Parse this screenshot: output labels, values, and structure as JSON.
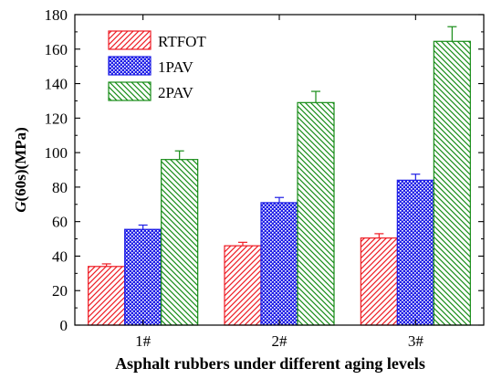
{
  "chart_data": {
    "type": "bar",
    "xlabel": "Asphalt rubbers under different aging levels",
    "ylabel_italic": "G",
    "ylabel_rest": "(60s)(MPa)",
    "ylim": [
      0,
      180
    ],
    "yticks": [
      "0",
      "20",
      "40",
      "60",
      "80",
      "100",
      "120",
      "140",
      "160",
      "180"
    ],
    "categories": [
      "1#",
      "2#",
      "3#"
    ],
    "legend_position": "top-left",
    "grid": false,
    "series": [
      {
        "name": "RTFOT",
        "values": [
          34,
          46,
          50.5
        ],
        "errors": [
          1.5,
          2,
          2.5
        ],
        "color": "#ee1c24",
        "pattern": "diagonal"
      },
      {
        "name": "1PAV",
        "values": [
          55.5,
          71,
          84
        ],
        "errors": [
          2.5,
          3,
          3.5
        ],
        "color": "#1f1fe6",
        "pattern": "crosshatch"
      },
      {
        "name": "2PAV",
        "values": [
          96,
          129,
          164.5
        ],
        "errors": [
          5,
          6.5,
          8.5
        ],
        "color": "#178c17",
        "pattern": "backdiagonal"
      }
    ]
  }
}
